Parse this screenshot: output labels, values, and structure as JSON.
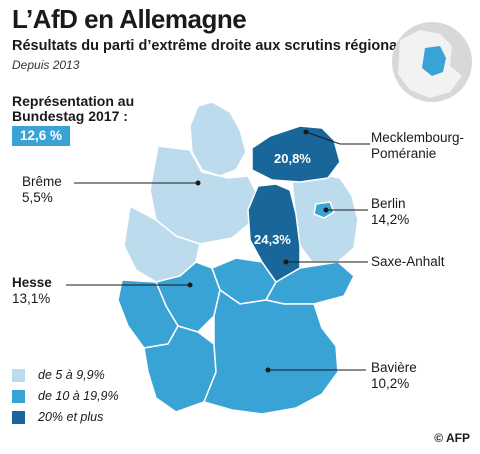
{
  "title": "L’AfD en Allemagne",
  "subtitle": "Résultats du parti d’extrême droite aux scrutins régionaux",
  "since": "Depuis 2013",
  "bundestag": {
    "label": "Représentation au Bundestag 2017 :",
    "value": "12,6 %"
  },
  "regions": {
    "mecklenburg": {
      "name": "Mecklembourg-Poméranie",
      "value": "20,8%"
    },
    "berlin": {
      "name": "Berlin",
      "value": "14,2%"
    },
    "saxe_anhalt": {
      "name": "Saxe-Anhalt",
      "value": "24,3%"
    },
    "baviere": {
      "name": "Bavière",
      "value": "10,2%"
    },
    "hesse": {
      "name": "Hesse",
      "value": "13,1%"
    },
    "breme": {
      "name": "Brême",
      "value": "5,5%"
    }
  },
  "legend": [
    {
      "label": "de 5 à 9,9%",
      "color": "#bcdcee"
    },
    {
      "label": "de 10 à 19,9%",
      "color": "#3aa3d6"
    },
    {
      "label": "20% et plus",
      "color": "#19679a"
    }
  ],
  "credit": "© AFP"
}
